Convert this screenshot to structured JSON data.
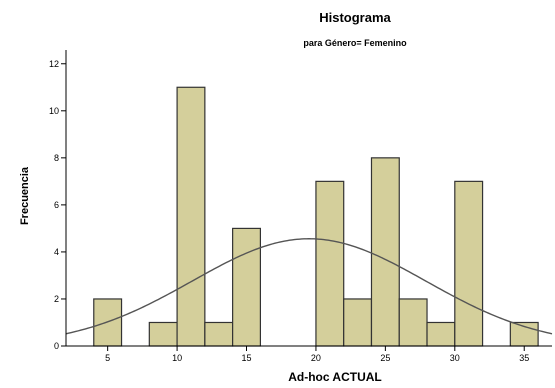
{
  "chart_data": {
    "type": "bar",
    "title": "Histograma",
    "subtitle": "para Género= Femenino",
    "xlabel": "Ad-hoc ACTUAL",
    "ylabel": "Frecuencia",
    "xlim": [
      2,
      37
    ],
    "ylim": [
      0,
      12.5
    ],
    "xticks": [
      5,
      10,
      15,
      20,
      25,
      30,
      35
    ],
    "yticks": [
      0,
      2,
      4,
      6,
      8,
      10,
      12
    ],
    "bin_width": 2,
    "bars": [
      {
        "x": 5,
        "value": 2
      },
      {
        "x": 9,
        "value": 1
      },
      {
        "x": 11,
        "value": 11
      },
      {
        "x": 13,
        "value": 1
      },
      {
        "x": 15,
        "value": 5
      },
      {
        "x": 21,
        "value": 7
      },
      {
        "x": 23,
        "value": 2
      },
      {
        "x": 25,
        "value": 8
      },
      {
        "x": 27,
        "value": 2
      },
      {
        "x": 29,
        "value": 1
      },
      {
        "x": 31,
        "value": 7
      },
      {
        "x": 35,
        "value": 1
      }
    ],
    "normal_curve": {
      "mean": 19.5,
      "sd": 8.4,
      "n": 48
    },
    "grid": false,
    "colors": {
      "bar_fill": "#d4cf9b",
      "bar_stroke": "#333333",
      "curve": "#555555",
      "axis": "#000000"
    }
  }
}
